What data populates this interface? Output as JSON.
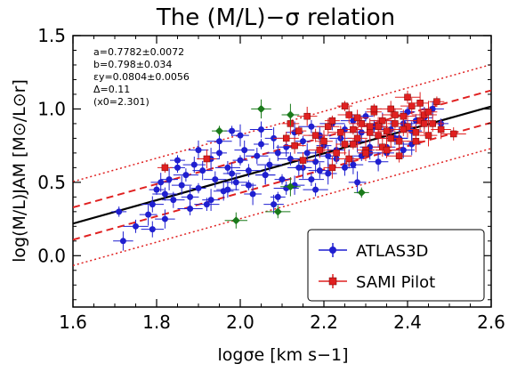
{
  "chart_data": {
    "type": "scatter",
    "title": "The (M/L)−σ relation",
    "xlabel": "logσe [km s−1]",
    "ylabel": "log(M/L)JAM [M⊙/L⊙r]",
    "xlim": [
      1.6,
      2.6
    ],
    "ylim": [
      -0.35,
      1.5
    ],
    "xticks": [
      "1.6",
      "1.8",
      "2.0",
      "2.2",
      "2.4",
      "2.6"
    ],
    "yticks": [
      "0.0",
      "0.5",
      "1.0",
      "1.5"
    ],
    "grid": false,
    "legend_placement": "lower-right",
    "fit_text": [
      "a=0.7782±0.0072",
      "b=0.798±0.034",
      "εy=0.0804±0.0056",
      "Δ=0.11",
      "(x0=2.301)"
    ],
    "fit": {
      "a": 0.7782,
      "b": 0.798,
      "x0": 2.301,
      "delta": 0.11,
      "eps_y": 0.0804
    },
    "colors": {
      "atlas": "#1f1fd0",
      "sami": "#e02020",
      "outlier": "#1a7a1a",
      "fit_line": "#000000"
    },
    "series": [
      {
        "name": "ATLAS3D",
        "marker": "circle",
        "x": [
          1.71,
          1.72,
          1.75,
          1.78,
          1.79,
          1.8,
          1.81,
          1.82,
          1.83,
          1.84,
          1.85,
          1.86,
          1.87,
          1.88,
          1.89,
          1.9,
          1.91,
          1.92,
          1.93,
          1.94,
          1.95,
          1.96,
          1.97,
          1.98,
          1.99,
          2.0,
          2.01,
          2.02,
          2.03,
          2.04,
          2.05,
          2.06,
          2.07,
          2.08,
          2.09,
          2.1,
          2.11,
          2.12,
          2.13,
          2.14,
          2.15,
          2.16,
          2.17,
          2.18,
          2.19,
          2.2,
          2.21,
          2.22,
          2.23,
          2.24,
          2.25,
          2.26,
          2.27,
          2.28,
          2.29,
          2.3,
          2.31,
          2.32,
          2.33,
          2.34,
          2.35,
          2.36,
          2.37,
          2.38,
          2.39,
          2.4,
          2.41,
          2.42,
          2.44,
          2.46,
          2.48,
          1.82,
          1.88,
          1.93,
          1.97,
          2.02,
          2.06,
          2.11,
          2.15,
          2.19,
          2.23,
          2.27,
          2.31,
          2.35,
          2.39,
          1.85,
          1.9,
          1.95,
          2.0,
          2.05,
          2.09,
          2.13,
          2.17,
          2.21,
          2.25,
          2.29,
          2.33,
          2.37,
          2.41,
          1.79,
          1.98,
          2.08,
          2.18,
          2.28
        ],
        "y": [
          0.3,
          0.1,
          0.2,
          0.28,
          0.35,
          0.45,
          0.5,
          0.42,
          0.52,
          0.38,
          0.6,
          0.48,
          0.55,
          0.4,
          0.62,
          0.46,
          0.58,
          0.35,
          0.66,
          0.52,
          0.7,
          0.44,
          0.6,
          0.56,
          0.5,
          0.65,
          0.72,
          0.58,
          0.42,
          0.68,
          0.76,
          0.55,
          0.62,
          0.8,
          0.7,
          0.52,
          0.74,
          0.66,
          0.84,
          0.6,
          0.78,
          0.7,
          0.88,
          0.64,
          0.82,
          0.75,
          0.68,
          0.9,
          0.72,
          0.8,
          0.86,
          0.66,
          0.92,
          0.78,
          0.84,
          0.95,
          0.74,
          0.88,
          0.82,
          0.92,
          0.7,
          0.86,
          0.96,
          0.8,
          0.9,
          0.98,
          0.85,
          0.92,
          0.94,
          1.0,
          0.9,
          0.25,
          0.32,
          0.38,
          0.45,
          0.48,
          0.55,
          0.46,
          0.6,
          0.58,
          0.66,
          0.62,
          0.7,
          0.74,
          0.72,
          0.65,
          0.72,
          0.78,
          0.82,
          0.86,
          0.4,
          0.48,
          0.52,
          0.56,
          0.6,
          0.68,
          0.64,
          0.8,
          0.76,
          0.18,
          0.85,
          0.35,
          0.45,
          0.5
        ]
      },
      {
        "name": "SAMI Pilot",
        "marker": "square",
        "x": [
          1.82,
          1.92,
          2.11,
          2.12,
          2.13,
          2.14,
          2.16,
          2.18,
          2.2,
          2.21,
          2.22,
          2.23,
          2.24,
          2.25,
          2.26,
          2.27,
          2.28,
          2.29,
          2.3,
          2.31,
          2.32,
          2.33,
          2.34,
          2.35,
          2.36,
          2.37,
          2.38,
          2.39,
          2.4,
          2.41,
          2.42,
          2.43,
          2.44,
          2.45,
          2.46,
          2.47,
          2.48,
          2.51,
          2.22,
          2.26,
          2.3,
          2.34,
          2.38,
          2.42,
          2.28,
          2.32,
          2.36,
          2.4,
          2.44,
          2.19,
          2.25,
          2.31,
          2.37,
          2.43,
          2.15,
          2.27,
          2.33,
          2.39,
          2.45,
          2.35
        ],
        "y": [
          0.6,
          0.66,
          0.8,
          0.9,
          0.75,
          0.85,
          0.95,
          0.82,
          0.78,
          0.88,
          0.92,
          0.7,
          0.84,
          0.76,
          0.96,
          0.86,
          0.8,
          0.9,
          0.72,
          0.88,
          0.98,
          0.82,
          0.92,
          0.85,
          1.0,
          0.9,
          0.78,
          0.95,
          0.88,
          1.02,
          0.84,
          0.92,
          0.96,
          0.82,
          0.9,
          1.05,
          0.86,
          0.83,
          0.6,
          0.66,
          0.7,
          0.74,
          0.68,
          0.78,
          0.94,
          1.0,
          0.8,
          1.08,
          0.9,
          0.72,
          1.02,
          0.84,
          0.96,
          1.04,
          0.65,
          0.76,
          0.88,
          0.86,
          0.98,
          0.72
        ]
      },
      {
        "name": "",
        "marker": "diamond",
        "x": [
          1.95,
          2.05,
          2.09,
          2.12,
          1.99,
          2.29,
          2.12
        ],
        "y": [
          0.85,
          1.0,
          0.3,
          0.96,
          0.24,
          0.43,
          0.47
        ]
      }
    ]
  },
  "legend": {
    "items": [
      "ATLAS3D",
      "SAMI Pilot"
    ]
  }
}
